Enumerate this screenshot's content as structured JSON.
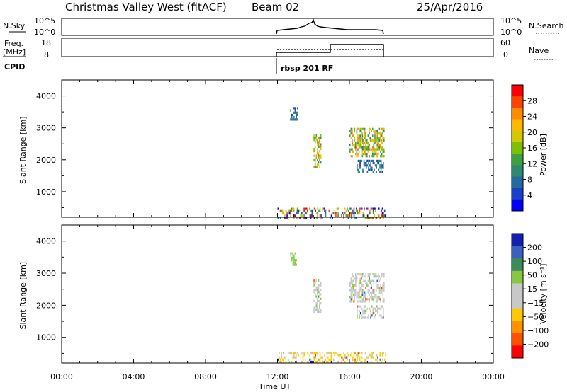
{
  "header": {
    "station": "Christmas Valley West (fitACF)",
    "beam": "Beam 02",
    "date": "25/Apr/2016"
  },
  "summary_panels": {
    "nsky_label": "N.Sky",
    "nsearch_label": "N.Search",
    "nsky_ticks_left": [
      "10^5",
      "10^0"
    ],
    "nsky_ticks_right": [
      "10^5",
      "10^0"
    ],
    "freq_label_line1": "Freq.",
    "freq_label_line2": "[MHz]",
    "freq_ticks": [
      "18",
      "8"
    ],
    "nave_label": "Nave",
    "nave_ticks": [
      "60",
      "0"
    ],
    "cpid_label": "CPID",
    "cpid_value": "rbsp 201 RF"
  },
  "chart_data": [
    {
      "type": "heatmap",
      "name": "power-panel",
      "ylabel": "Slant Range [km]",
      "ytick_labels": [
        "1000",
        "2000",
        "3000",
        "4000"
      ],
      "ylim": [
        200,
        4500
      ],
      "xlim": [
        0,
        24
      ],
      "colorbar": {
        "label": "Power [dB]",
        "ticks": [
          "28",
          "24",
          "20",
          "16",
          "12",
          "8",
          "4"
        ],
        "colors": [
          "#ff0000",
          "#ff4400",
          "#ff8c00",
          "#ffb800",
          "#d4c800",
          "#7ec000",
          "#3fa040",
          "#2e8a6e",
          "#236aa0",
          "#1840c8",
          "#0000ff"
        ]
      },
      "regions": [
        {
          "x0": 12.7,
          "x1": 13.1,
          "y0": 3250,
          "y1": 3650,
          "level": "low"
        },
        {
          "x0": 14.0,
          "x1": 14.4,
          "y0": 1800,
          "y1": 2800,
          "level": "mid"
        },
        {
          "x0": 16.0,
          "x1": 17.9,
          "y0": 2100,
          "y1": 3000,
          "level": "mid"
        },
        {
          "x0": 16.4,
          "x1": 17.9,
          "y0": 1600,
          "y1": 2000,
          "level": "low"
        },
        {
          "x0": 12.0,
          "x1": 18.0,
          "y0": 200,
          "y1": 500,
          "level": "mixed"
        }
      ]
    },
    {
      "type": "heatmap",
      "name": "velocity-panel",
      "ylabel": "Slant Range [km]",
      "ytick_labels": [
        "1000",
        "2000",
        "3000",
        "4000"
      ],
      "ylim": [
        200,
        4500
      ],
      "xlim": [
        0,
        24
      ],
      "colorbar": {
        "label": "Velocity [m s⁻¹]",
        "ticks": [
          "200",
          "100",
          "50",
          "15",
          "−15",
          "−50",
          "−100",
          "−200"
        ],
        "colors": [
          "#1020b0",
          "#3a60c0",
          "#3d8a5a",
          "#88c840",
          "#c8c8c8",
          "#c8c8c8",
          "#ffc800",
          "#ff9000",
          "#ff5000",
          "#ff0000"
        ]
      },
      "regions": [
        {
          "x0": 12.7,
          "x1": 13.1,
          "y0": 3250,
          "y1": 3650,
          "level": "green"
        },
        {
          "x0": 14.0,
          "x1": 14.4,
          "y0": 1800,
          "y1": 2800,
          "level": "grey"
        },
        {
          "x0": 16.0,
          "x1": 17.9,
          "y0": 2100,
          "y1": 3000,
          "level": "grey"
        },
        {
          "x0": 16.4,
          "x1": 17.9,
          "y0": 1600,
          "y1": 2000,
          "level": "grey"
        },
        {
          "x0": 12.0,
          "x1": 18.0,
          "y0": 200,
          "y1": 550,
          "level": "yellow"
        }
      ]
    }
  ],
  "xaxis": {
    "label": "Time UT",
    "ticks": [
      "00:00",
      "04:00",
      "08:00",
      "12:00",
      "16:00",
      "20:00",
      "00:00"
    ]
  }
}
